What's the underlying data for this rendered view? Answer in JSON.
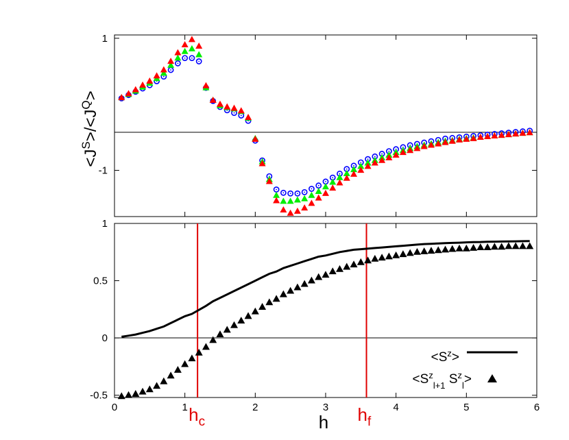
{
  "chart_data": [
    {
      "type": "scatter",
      "ylabel": "<J^S>/<J^Q>",
      "xlim": [
        0,
        6
      ],
      "ylim": [
        -1.7,
        1.05
      ],
      "yticks": [
        1,
        -1
      ],
      "reference_line_y": 0,
      "series": [
        {
          "marker": "open-circle",
          "color": "#0000ff",
          "x": [
            0.1,
            0.2,
            0.3,
            0.4,
            0.5,
            0.6,
            0.7,
            0.8,
            0.9,
            1.0,
            1.1,
            1.2,
            1.3,
            1.4,
            1.5,
            1.6,
            1.7,
            1.8,
            1.9,
            2.0,
            2.1,
            2.2,
            2.3,
            2.4,
            2.5,
            2.6,
            2.7,
            2.8,
            2.9,
            3.0,
            3.1,
            3.2,
            3.3,
            3.4,
            3.5,
            3.6,
            3.7,
            3.8,
            3.9,
            4.0,
            4.1,
            4.2,
            4.3,
            4.4,
            4.5,
            4.6,
            4.7,
            4.8,
            4.9,
            5.0,
            5.1,
            5.2,
            5.3,
            5.4,
            5.5,
            5.6,
            5.7,
            5.8,
            5.9
          ],
          "y": [
            0.09,
            0.14,
            0.19,
            0.24,
            0.29,
            0.35,
            0.42,
            0.52,
            0.62,
            0.7,
            0.7,
            0.65,
            0.25,
            0.05,
            -0.04,
            -0.09,
            -0.13,
            -0.17,
            -0.25,
            -0.55,
            -0.85,
            -1.09,
            -1.29,
            -1.34,
            -1.35,
            -1.35,
            -1.33,
            -1.28,
            -1.23,
            -1.17,
            -1.11,
            -1.05,
            -0.98,
            -0.93,
            -0.88,
            -0.83,
            -0.79,
            -0.75,
            -0.71,
            -0.68,
            -0.65,
            -0.62,
            -0.6,
            -0.58,
            -0.56,
            -0.54,
            -0.52,
            -0.51,
            -0.5,
            -0.49,
            -0.48,
            -0.47,
            -0.46,
            -0.45,
            -0.44,
            -0.43,
            -0.42,
            -0.41,
            -0.4
          ]
        },
        {
          "marker": "triangle",
          "color": "#00ee00",
          "x": [
            0.1,
            0.2,
            0.3,
            0.4,
            0.5,
            0.6,
            0.7,
            0.8,
            0.9,
            1.0,
            1.1,
            1.2,
            1.3,
            1.4,
            1.5,
            1.6,
            1.7,
            1.8,
            1.9,
            2.0,
            2.1,
            2.2,
            2.3,
            2.4,
            2.5,
            2.6,
            2.7,
            2.8,
            2.9,
            3.0,
            3.1,
            3.2,
            3.3,
            3.4,
            3.5,
            3.6,
            3.7,
            3.8,
            3.9,
            4.0,
            4.1,
            4.2,
            4.3,
            4.4,
            4.5,
            4.6,
            4.7,
            4.8,
            4.9,
            5.0,
            5.1,
            5.2,
            5.3,
            5.4,
            5.5,
            5.6,
            5.7,
            5.8,
            5.9
          ],
          "y": [
            0.1,
            0.15,
            0.2,
            0.26,
            0.32,
            0.39,
            0.47,
            0.59,
            0.7,
            0.8,
            0.84,
            0.75,
            0.25,
            0.06,
            -0.02,
            -0.05,
            -0.07,
            -0.11,
            -0.21,
            -0.52,
            -0.87,
            -1.14,
            -1.38,
            -1.47,
            -1.47,
            -1.45,
            -1.43,
            -1.38,
            -1.32,
            -1.25,
            -1.18,
            -1.11,
            -1.05,
            -0.99,
            -0.94,
            -0.89,
            -0.85,
            -0.81,
            -0.77,
            -0.73,
            -0.7,
            -0.67,
            -0.64,
            -0.62,
            -0.6,
            -0.58,
            -0.56,
            -0.55,
            -0.53,
            -0.52,
            -0.51,
            -0.5,
            -0.49,
            -0.48,
            -0.47,
            -0.46,
            -0.45,
            -0.44,
            -0.43
          ]
        },
        {
          "marker": "triangle",
          "color": "#ff0000",
          "x": [
            0.1,
            0.2,
            0.3,
            0.4,
            0.5,
            0.6,
            0.7,
            0.8,
            0.9,
            1.0,
            1.1,
            1.2,
            1.3,
            1.4,
            1.5,
            1.6,
            1.7,
            1.8,
            1.9,
            2.0,
            2.1,
            2.2,
            2.3,
            2.4,
            2.5,
            2.6,
            2.7,
            2.8,
            2.9,
            3.0,
            3.1,
            3.2,
            3.3,
            3.4,
            3.5,
            3.6,
            3.7,
            3.8,
            3.9,
            4.0,
            4.1,
            4.2,
            4.3,
            4.4,
            4.5,
            4.6,
            4.7,
            4.8,
            4.9,
            5.0,
            5.1,
            5.2,
            5.3,
            5.4,
            5.5,
            5.6,
            5.7,
            5.8,
            5.9
          ],
          "y": [
            0.1,
            0.16,
            0.22,
            0.29,
            0.35,
            0.43,
            0.52,
            0.65,
            0.78,
            0.9,
            0.98,
            0.88,
            0.28,
            0.06,
            0.0,
            -0.04,
            -0.06,
            -0.1,
            -0.2,
            -0.53,
            -0.9,
            -1.17,
            -1.46,
            -1.6,
            -1.65,
            -1.62,
            -1.57,
            -1.5,
            -1.42,
            -1.35,
            -1.27,
            -1.19,
            -1.12,
            -1.06,
            -1.0,
            -0.94,
            -0.89,
            -0.85,
            -0.81,
            -0.77,
            -0.73,
            -0.7,
            -0.67,
            -0.64,
            -0.62,
            -0.6,
            -0.58,
            -0.56,
            -0.54,
            -0.53,
            -0.52,
            -0.5,
            -0.49,
            -0.48,
            -0.47,
            -0.46,
            -0.45,
            -0.44,
            -0.43
          ]
        }
      ]
    },
    {
      "type": "line",
      "xlabel": "h",
      "xlim": [
        0,
        6
      ],
      "ylim": [
        -0.52,
        1.0
      ],
      "xticks": [
        0,
        1,
        2,
        3,
        4,
        5,
        6
      ],
      "yticks": [
        1,
        0.5,
        0,
        -0.5
      ],
      "reference_line_y": 0,
      "vertical_lines": [
        {
          "x": 1.18,
          "label": "h_c",
          "color": "#e00000"
        },
        {
          "x": 3.58,
          "label": "h_f",
          "color": "#e00000"
        }
      ],
      "legend_position": "bottom-right",
      "series": [
        {
          "name": "<S^z>",
          "style": "line",
          "color": "#000000",
          "x": [
            0.1,
            0.2,
            0.3,
            0.4,
            0.5,
            0.6,
            0.7,
            0.8,
            0.9,
            1.0,
            1.1,
            1.2,
            1.3,
            1.4,
            1.5,
            1.6,
            1.7,
            1.8,
            1.9,
            2.0,
            2.1,
            2.2,
            2.3,
            2.4,
            2.5,
            2.6,
            2.7,
            2.8,
            2.9,
            3.0,
            3.1,
            3.2,
            3.3,
            3.4,
            3.5,
            3.6,
            3.7,
            3.8,
            3.9,
            4.0,
            4.1,
            4.2,
            4.3,
            4.4,
            4.5,
            4.6,
            4.7,
            4.8,
            4.9,
            5.0,
            5.1,
            5.2,
            5.3,
            5.4,
            5.5,
            5.6,
            5.7,
            5.8,
            5.9
          ],
          "y": [
            0.01,
            0.02,
            0.03,
            0.045,
            0.06,
            0.08,
            0.1,
            0.13,
            0.16,
            0.19,
            0.21,
            0.245,
            0.28,
            0.32,
            0.35,
            0.38,
            0.41,
            0.44,
            0.47,
            0.5,
            0.53,
            0.56,
            0.58,
            0.61,
            0.63,
            0.65,
            0.67,
            0.69,
            0.71,
            0.72,
            0.735,
            0.75,
            0.76,
            0.77,
            0.775,
            0.78,
            0.785,
            0.79,
            0.795,
            0.8,
            0.805,
            0.81,
            0.815,
            0.82,
            0.822,
            0.825,
            0.828,
            0.83,
            0.832,
            0.835,
            0.837,
            0.838,
            0.84,
            0.841,
            0.842,
            0.843,
            0.844,
            0.845,
            0.846
          ]
        },
        {
          "name": "<S^z_{l+1} S^z_l>",
          "style": "triangle",
          "color": "#000000",
          "x": [
            0.1,
            0.2,
            0.3,
            0.4,
            0.5,
            0.6,
            0.7,
            0.8,
            0.9,
            1.0,
            1.1,
            1.2,
            1.3,
            1.4,
            1.5,
            1.6,
            1.7,
            1.8,
            1.9,
            2.0,
            2.1,
            2.2,
            2.3,
            2.4,
            2.5,
            2.6,
            2.7,
            2.8,
            2.9,
            3.0,
            3.1,
            3.2,
            3.3,
            3.4,
            3.5,
            3.6,
            3.7,
            3.8,
            3.9,
            4.0,
            4.1,
            4.2,
            4.3,
            4.4,
            4.5,
            4.6,
            4.7,
            4.8,
            4.9,
            5.0,
            5.1,
            5.2,
            5.3,
            5.4,
            5.5,
            5.6,
            5.7,
            5.8,
            5.9
          ],
          "y": [
            -0.51,
            -0.5,
            -0.49,
            -0.47,
            -0.45,
            -0.42,
            -0.38,
            -0.33,
            -0.28,
            -0.23,
            -0.18,
            -0.13,
            -0.08,
            -0.02,
            0.03,
            0.07,
            0.11,
            0.15,
            0.19,
            0.23,
            0.27,
            0.31,
            0.34,
            0.38,
            0.41,
            0.44,
            0.47,
            0.5,
            0.53,
            0.55,
            0.58,
            0.6,
            0.62,
            0.64,
            0.66,
            0.675,
            0.69,
            0.7,
            0.71,
            0.72,
            0.73,
            0.74,
            0.75,
            0.755,
            0.76,
            0.765,
            0.77,
            0.775,
            0.78,
            0.78,
            0.785,
            0.79,
            0.79,
            0.795,
            0.795,
            0.8,
            0.8,
            0.8,
            0.8
          ]
        }
      ]
    }
  ]
}
